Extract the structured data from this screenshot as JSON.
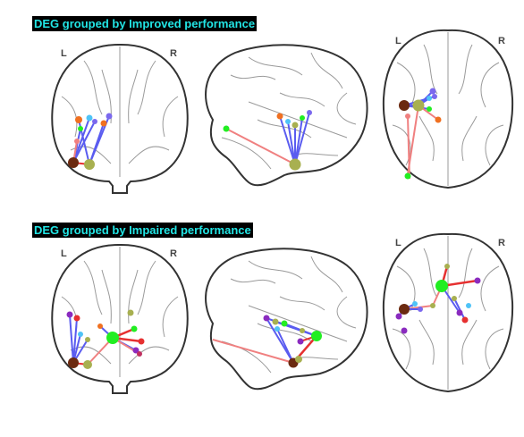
{
  "panels": [
    {
      "title": "DEG grouped by Improved performance",
      "coronal": {
        "left": "L",
        "right": "R"
      },
      "axial": {
        "left": "L",
        "right": "R"
      }
    },
    {
      "title": "DEG grouped by Impaired performance",
      "coronal": {
        "left": "L",
        "right": "R"
      },
      "axial": {
        "left": "L",
        "right": "R"
      }
    }
  ],
  "colors": {
    "title_text": "#22e5e5",
    "title_background": "#000000",
    "edge_blue": "#5a5cf0",
    "edge_red": "#e63030",
    "edge_pink": "#f08080",
    "node_brown": "#6b2a10",
    "node_olive": "#a8b050",
    "node_green": "#22ee22",
    "node_purple": "#8a2bbf"
  }
}
